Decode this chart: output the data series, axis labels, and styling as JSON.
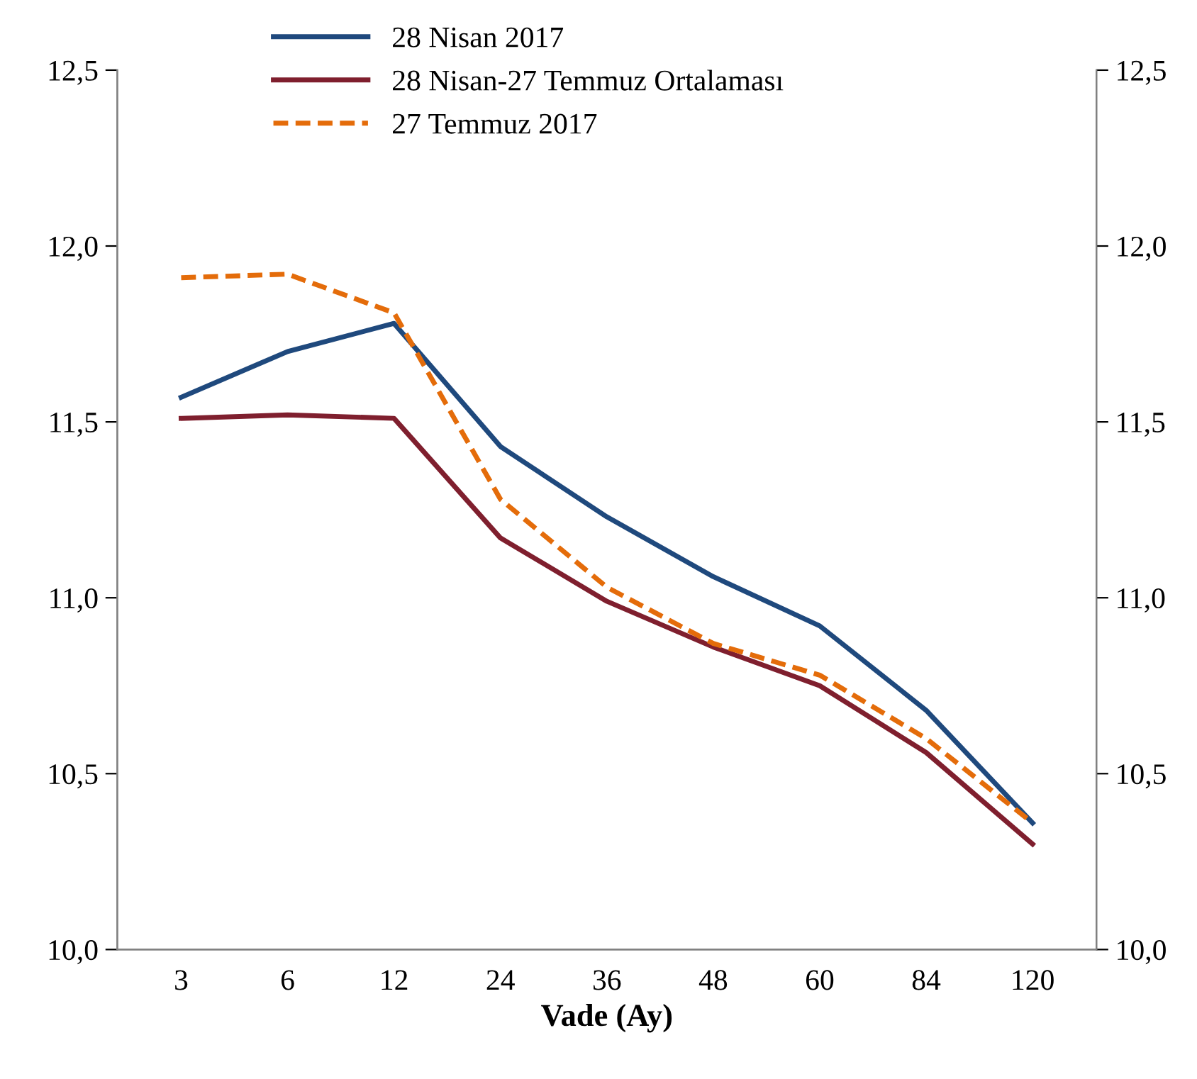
{
  "chart_data": {
    "type": "line",
    "xlabel": "Vade (Ay)",
    "categories": [
      "3",
      "6",
      "12",
      "24",
      "36",
      "48",
      "60",
      "84",
      "120"
    ],
    "series": [
      {
        "name": "28 Nisan 2017",
        "color": "#1f497d",
        "line_style": "solid",
        "values": [
          11.57,
          11.7,
          11.78,
          11.43,
          11.23,
          11.06,
          10.92,
          10.68,
          10.36
        ]
      },
      {
        "name": "28 Nisan-27 Temmuz Ortalaması",
        "color": "#7f1f2e",
        "line_style": "solid",
        "values": [
          11.51,
          11.52,
          11.51,
          11.17,
          10.99,
          10.86,
          10.75,
          10.56,
          10.3
        ]
      },
      {
        "name": "27 Temmuz 2017",
        "color": "#e46c0a",
        "line_style": "dashed",
        "values": [
          11.91,
          11.92,
          11.81,
          11.28,
          11.03,
          10.87,
          10.78,
          10.6,
          10.36
        ]
      }
    ],
    "ylim": [
      10.0,
      12.5
    ],
    "yticks": [
      {
        "value": 10.0,
        "label": "10,0"
      },
      {
        "value": 10.5,
        "label": "10,5"
      },
      {
        "value": 11.0,
        "label": "11,0"
      },
      {
        "value": 11.5,
        "label": "11,5"
      },
      {
        "value": 12.0,
        "label": "12,0"
      },
      {
        "value": 12.5,
        "label": "12,5"
      }
    ],
    "y2lim": [
      10.0,
      12.5
    ],
    "y2ticks": [
      {
        "value": 10.0,
        "label": "10,0"
      },
      {
        "value": 10.5,
        "label": "10,5"
      },
      {
        "value": 11.0,
        "label": "11,0"
      },
      {
        "value": 11.5,
        "label": "11,5"
      },
      {
        "value": 12.0,
        "label": "12,0"
      },
      {
        "value": 12.5,
        "label": "12,5"
      }
    ],
    "legend": "top",
    "grid": false,
    "marker": "none"
  }
}
